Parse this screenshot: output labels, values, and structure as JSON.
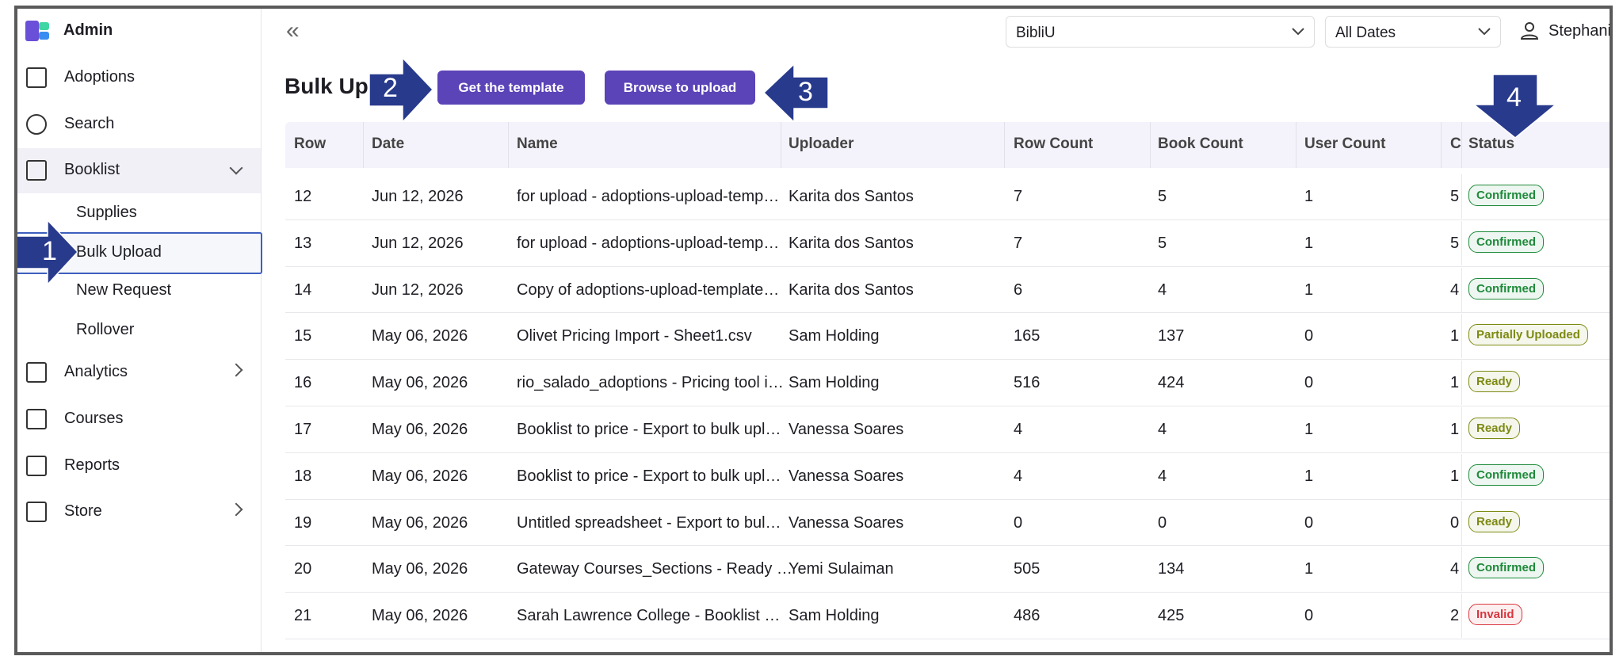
{
  "sidebar": {
    "brand": "Admin",
    "items": [
      "Adoptions",
      "Search",
      "Booklist",
      "Supplies",
      "Bulk Upload",
      "New Request",
      "Rollover",
      "Analytics",
      "Courses",
      "Reports",
      "Store"
    ]
  },
  "header": {
    "collapse": "«",
    "org": "BibliU",
    "dates": "All Dates",
    "user": "Stephani"
  },
  "page_title": "Bulk Upl",
  "buttons": [
    "Get the template",
    "Browse to upload"
  ],
  "table": {
    "columns": [
      "Row",
      "Date",
      "Name",
      "Uploader",
      "Row Count",
      "Book Count",
      "User Count",
      "C",
      "Status"
    ],
    "rows": [
      {
        "cells": [
          12,
          "Jun 12, 2026",
          "for upload - adoptions-upload-temp…",
          "Karita dos Santos",
          7,
          5,
          1,
          5
        ],
        "status": "Confirmed",
        "status_color": "#1f8a3b"
      },
      {
        "cells": [
          13,
          "Jun 12, 2026",
          "for upload - adoptions-upload-temp…",
          "Karita dos Santos",
          7,
          5,
          1,
          5
        ],
        "status": "Confirmed",
        "status_color": "#1f8a3b"
      },
      {
        "cells": [
          14,
          "Jun 12, 2026",
          "Copy of adoptions-upload-template…",
          "Karita dos Santos",
          6,
          4,
          1,
          4
        ],
        "status": "Confirmed",
        "status_color": "#1f8a3b"
      },
      {
        "cells": [
          15,
          "May 06, 2026",
          "Olivet Pricing Import - Sheet1.csv",
          "Sam Holding",
          165,
          137,
          0,
          1
        ],
        "status": "Partially Uploaded",
        "status_color": "#7d8a12"
      },
      {
        "cells": [
          16,
          "May 06, 2026",
          "rio_salado_adoptions - Pricing tool i…",
          "Sam Holding",
          516,
          424,
          0,
          1
        ],
        "status": "Ready",
        "status_color": "#7d8a12"
      },
      {
        "cells": [
          17,
          "May 06, 2026",
          "Booklist to price - Export to bulk upl…",
          "Vanessa Soares",
          4,
          4,
          1,
          1
        ],
        "status": "Ready",
        "status_color": "#7d8a12"
      },
      {
        "cells": [
          18,
          "May 06, 2026",
          "Booklist to price - Export to bulk upl…",
          "Vanessa Soares",
          4,
          4,
          1,
          1
        ],
        "status": "Confirmed",
        "status_color": "#1f8a3b"
      },
      {
        "cells": [
          19,
          "May 06, 2026",
          "Untitled spreadsheet - Export to bul…",
          "Vanessa Soares",
          0,
          0,
          0,
          0
        ],
        "status": "Ready",
        "status_color": "#7d8a12"
      },
      {
        "cells": [
          20,
          "May 06, 2026",
          "Gateway Courses_Sections - Ready …",
          "Yemi Sulaiman",
          505,
          134,
          1,
          4
        ],
        "status": "Confirmed",
        "status_color": "#1f8a3b"
      },
      {
        "cells": [
          21,
          "May 06, 2026",
          "Sarah Lawrence College - Booklist …",
          "Sam Holding",
          486,
          425,
          0,
          2
        ],
        "status": "Invalid",
        "status_color": "#d9363e"
      }
    ]
  },
  "annotations": [
    "1",
    "2",
    "3",
    "4"
  ]
}
